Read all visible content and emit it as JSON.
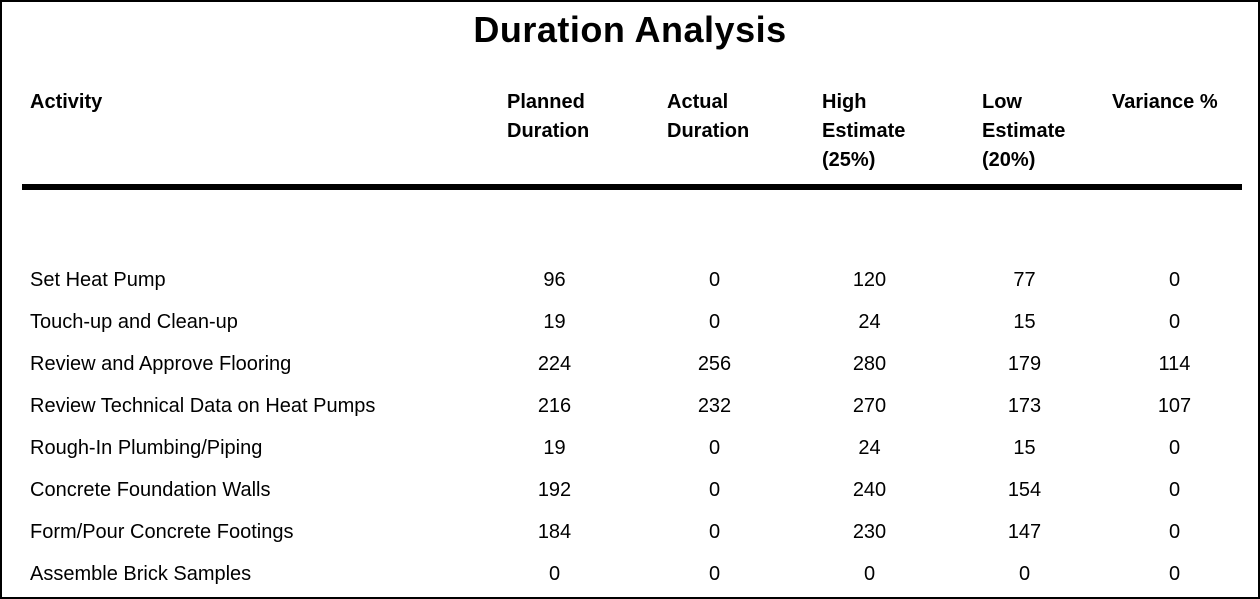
{
  "title": "Duration Analysis",
  "colors": {
    "text": "#000000",
    "background": "#ffffff",
    "border": "#000000",
    "divider": "#000000"
  },
  "table": {
    "columns": [
      {
        "id": "activity",
        "label": "Activity"
      },
      {
        "id": "planned_duration",
        "label": "Planned\nDuration"
      },
      {
        "id": "actual_duration",
        "label": "Actual\nDuration"
      },
      {
        "id": "high_estimate",
        "label": "High\nEstimate\n(25%)"
      },
      {
        "id": "low_estimate",
        "label": "Low\nEstimate\n(20%)"
      },
      {
        "id": "variance_pct",
        "label": "Variance %"
      }
    ],
    "rows": [
      {
        "activity": "Set Heat Pump",
        "values": [
          "96",
          "0",
          "120",
          "77",
          "0"
        ]
      },
      {
        "activity": "Touch-up and Clean-up",
        "values": [
          "19",
          "0",
          "24",
          "15",
          "0"
        ]
      },
      {
        "activity": "Review and Approve Flooring",
        "values": [
          "224",
          "256",
          "280",
          "179",
          "114"
        ]
      },
      {
        "activity": "Review Technical Data on Heat Pumps",
        "values": [
          "216",
          "232",
          "270",
          "173",
          "107"
        ]
      },
      {
        "activity": "Rough-In Plumbing/Piping",
        "values": [
          "19",
          "0",
          "24",
          "15",
          "0"
        ]
      },
      {
        "activity": "Concrete Foundation Walls",
        "values": [
          "192",
          "0",
          "240",
          "154",
          "0"
        ]
      },
      {
        "activity": "Form/Pour Concrete Footings",
        "values": [
          "184",
          "0",
          "230",
          "147",
          "0"
        ]
      },
      {
        "activity": "Assemble Brick Samples",
        "values": [
          "0",
          "0",
          "0",
          "0",
          "0"
        ]
      }
    ]
  }
}
